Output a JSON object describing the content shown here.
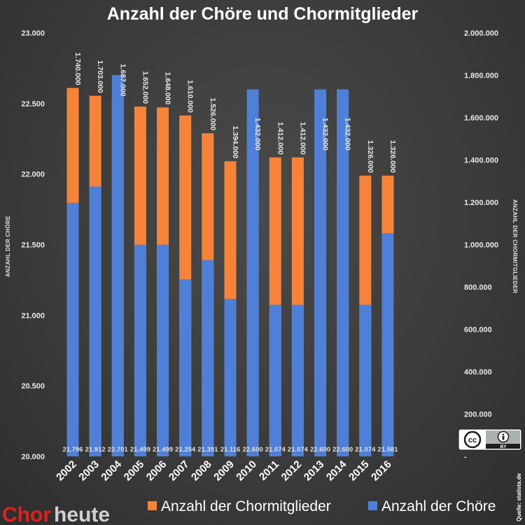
{
  "chart_data": {
    "type": "bar",
    "title": "Anzahl der Chöre und Chormitglieder",
    "categories": [
      "2002",
      "2003",
      "2004",
      "2005",
      "2006",
      "2007",
      "2008",
      "2009",
      "2010",
      "2011",
      "2012",
      "2013",
      "2014",
      "2015",
      "2016"
    ],
    "series": [
      {
        "name": "Anzahl der Chormitglieder",
        "axis": "right",
        "color": "#f5843a",
        "values": [
          1740000,
          1703000,
          1687000,
          1652000,
          1648000,
          1610000,
          1526000,
          1394000,
          1432000,
          1412000,
          1412000,
          1432000,
          1432000,
          1326000,
          1326000
        ],
        "labels": [
          "1.740.000",
          "1.703.000",
          "1.687.000",
          "1.652.000",
          "1.648.000",
          "1.610.000",
          "1.526.000",
          "1.394.000",
          "1.432.000",
          "1.412.000",
          "1.412.000",
          "1.432.000",
          "1.432.000",
          "1.326.000",
          "1.326.000"
        ]
      },
      {
        "name": "Anzahl der Chöre",
        "axis": "left",
        "color": "#4f7fd6",
        "values": [
          21796,
          21912,
          22701,
          21499,
          21499,
          21254,
          21391,
          21116,
          22600,
          21074,
          21074,
          22600,
          22600,
          21074,
          21581
        ],
        "labels": [
          "21.796",
          "21.912",
          "22.701",
          "21.499",
          "21.499",
          "21.254",
          "21.391",
          "21.116",
          "22.600",
          "21.074",
          "21.074",
          "22.600",
          "22.600",
          "21.074",
          "21.581"
        ]
      }
    ],
    "ylabel_left": "ANZAHL DER CHÖRE",
    "ylabel_right": "ANZAHL DER CHORMITGLIEDER",
    "ylim_left": [
      20000,
      23000
    ],
    "ylim_right": [
      0,
      2000000
    ],
    "yticks_left": [
      "20.000",
      "20.500",
      "21.000",
      "21.500",
      "22.000",
      "22.500",
      "23.000"
    ],
    "yticks_right": [
      "-",
      "200.000",
      "400.000",
      "600.000",
      "800.000",
      "1.000.000",
      "1.200.000",
      "1.400.000",
      "1.600.000",
      "1.800.000",
      "2.000.000"
    ],
    "legend_placement": "bottom",
    "grid": false
  },
  "legend": [
    {
      "label": "Anzahl der Chormitglieder",
      "color": "#f5843a"
    },
    {
      "label": "Anzahl der Chöre",
      "color": "#4f7fd6"
    }
  ],
  "source": "Quelle: statista.de",
  "logo": {
    "part1": "Chor",
    "part2": "heute"
  },
  "license_badge": {
    "text": "BY",
    "cc": "cc",
    "icon": "attribution-icon"
  }
}
